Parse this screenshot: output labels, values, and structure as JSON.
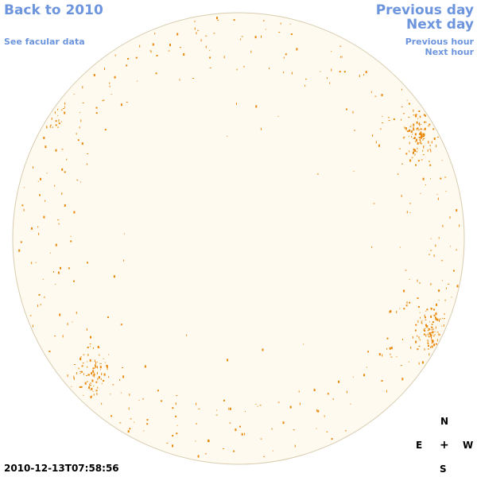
{
  "nav": {
    "back": "Back to 2010",
    "facular": "See facular data",
    "prev_day": "Previous day",
    "next_day": "Next day",
    "prev_hour": "Previous hour",
    "next_hour": "Next hour"
  },
  "timestamp": "2010-12-13T07:58:56",
  "compass": {
    "n": "N",
    "e": "E",
    "center": "+",
    "w": "W",
    "s": "S"
  },
  "colors": {
    "link": "#6d95dd",
    "disk_fill": "#fefaf0",
    "disk_edge": "#d9ccb0",
    "facula": "#e8890c"
  },
  "facula_clusters": [
    {
      "region": "upper-left",
      "lat": 0.22,
      "lon": 0.1,
      "density": "dense"
    },
    {
      "region": "upper-right",
      "lat": 0.28,
      "lon": 0.88,
      "density": "dense"
    },
    {
      "region": "lower-right",
      "lat": 0.7,
      "lon": 0.9,
      "density": "dense"
    },
    {
      "region": "lower-left",
      "lat": 0.78,
      "lon": 0.19,
      "density": "medium"
    }
  ]
}
